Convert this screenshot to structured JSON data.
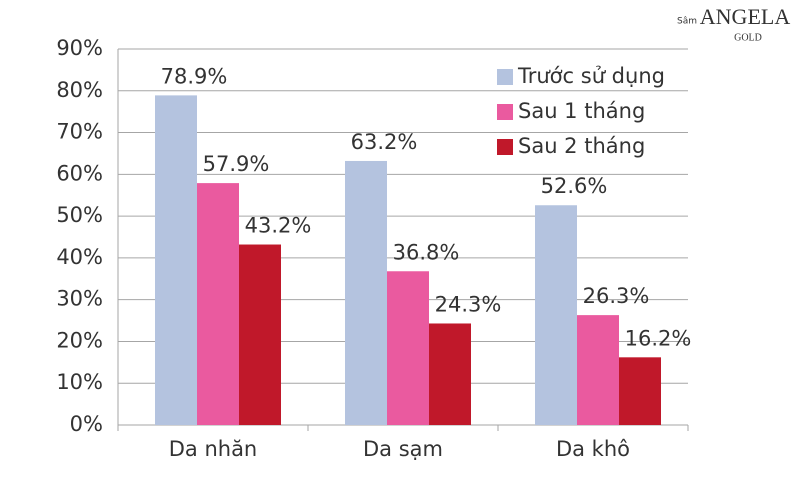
{
  "chart_data": {
    "type": "bar",
    "categories": [
      "Da nhăn",
      "Da sạm",
      "Da khô"
    ],
    "series": [
      {
        "name": "Trước sử dụng",
        "color": "#b4c3df",
        "values": [
          78.9,
          63.2,
          52.6
        ],
        "value_labels": [
          "78.9%",
          "63.2%",
          "52.6%"
        ]
      },
      {
        "name": "Sau 1 tháng",
        "color": "#ea5a9f",
        "values": [
          57.9,
          36.8,
          26.3
        ],
        "value_labels": [
          "57.9%",
          "36.8%",
          "26.3%"
        ]
      },
      {
        "name": "Sau 2 tháng",
        "color": "#c0182a",
        "values": [
          43.2,
          24.3,
          16.2
        ],
        "value_labels": [
          "43.2%",
          "24.3%",
          "16.2%"
        ]
      }
    ],
    "ylim": [
      0,
      90
    ],
    "yticks": [
      {
        "value": 0,
        "label": "0%"
      },
      {
        "value": 10,
        "label": "10%"
      },
      {
        "value": 20,
        "label": "20%"
      },
      {
        "value": 30,
        "label": "30%"
      },
      {
        "value": 40,
        "label": "40%"
      },
      {
        "value": 50,
        "label": "50%"
      },
      {
        "value": 60,
        "label": "60%"
      },
      {
        "value": 70,
        "label": "70%"
      },
      {
        "value": 80,
        "label": "80%"
      },
      {
        "value": 90,
        "label": "90%"
      }
    ],
    "grid": true,
    "legend": "top-right"
  },
  "logo": {
    "prefix": "Sâm",
    "brand": "ANGELA",
    "sub": "GOLD"
  }
}
